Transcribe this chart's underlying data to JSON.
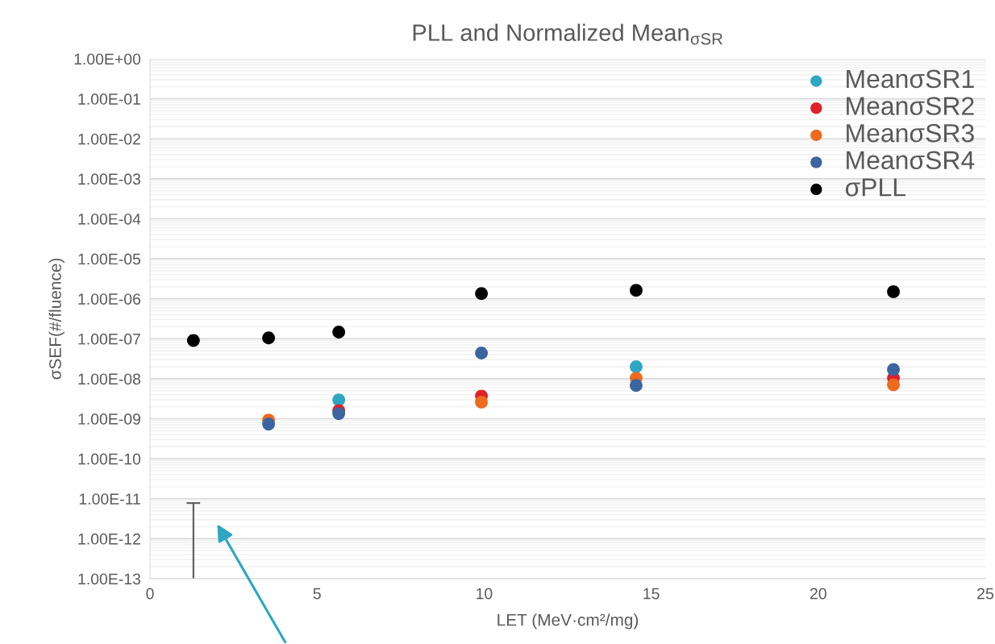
{
  "chart_data": {
    "type": "scatter",
    "title": "PLL and Normalized Mean$_{σSR}$",
    "xlabel": "LET (MeV·cm²/mg)",
    "ylabel": "σSEF(#/fluence)",
    "x": [
      1.3,
      3.55,
      5.65,
      9.92,
      14.55,
      22.25
    ],
    "series": [
      {
        "name": "MeanσSR1",
        "color": "#2ea6c4",
        "values": [
          null,
          null,
          2.96e-09,
          null,
          2e-08,
          null
        ]
      },
      {
        "name": "MeanσSR2",
        "color": "#e0202a",
        "values": [
          null,
          null,
          1.6e-09,
          3.7e-09,
          null,
          1.04e-08
        ]
      },
      {
        "name": "MeanσSR3",
        "color": "#ee6a1e",
        "values": [
          null,
          9.3e-10,
          null,
          2.6e-09,
          1.04e-08,
          7.1e-09
        ]
      },
      {
        "name": "MeanσSR4",
        "color": "#3b64a0",
        "values": [
          null,
          7.4e-10,
          1.35e-09,
          4.4e-08,
          6.8e-09,
          1.7e-08
        ]
      },
      {
        "name": "σPLL",
        "color": "#000000",
        "values": [
          9.1e-08,
          1.05e-07,
          1.47e-07,
          1.35e-06,
          1.63e-06,
          1.5e-06
        ]
      },
      {
        "type": "line",
        "marker": "none",
        "color": "#595959",
        "x": [
          1.3,
          1.3
        ],
        "values": [
          1e-13,
          7.8e-12
        ]
      }
    ],
    "log": "y",
    "xlim": [
      0,
      25
    ],
    "xticks": [
      0,
      5,
      10,
      15,
      20,
      25
    ],
    "ylim": [
      1e-13,
      1
    ],
    "yticks": [
      {
        "value": 1e-13,
        "label": "1.00E-13"
      },
      {
        "value": 1e-12,
        "label": "1.00E-12"
      },
      {
        "value": 1e-11,
        "label": "1.00E-11"
      },
      {
        "value": 1e-10,
        "label": "1.00E-10"
      },
      {
        "value": 1e-09,
        "label": "1.00E-09"
      },
      {
        "value": 1e-08,
        "label": "1.00E-08"
      },
      {
        "value": 1e-07,
        "label": "1.00E-07"
      },
      {
        "value": 1e-06,
        "label": "1.00E-06"
      },
      {
        "value": 1e-05,
        "label": "1.00E-05"
      },
      {
        "value": 0.0001,
        "label": "1.00E-04"
      },
      {
        "value": 0.001,
        "label": "1.00E-03"
      },
      {
        "value": 0.01,
        "label": "1.00E-02"
      },
      {
        "value": 0.1,
        "label": "1.00E-01"
      },
      {
        "value": 1,
        "label": "1.00E+00"
      }
    ],
    "grid": "y",
    "legend": "top right",
    "marker": "circle"
  }
}
